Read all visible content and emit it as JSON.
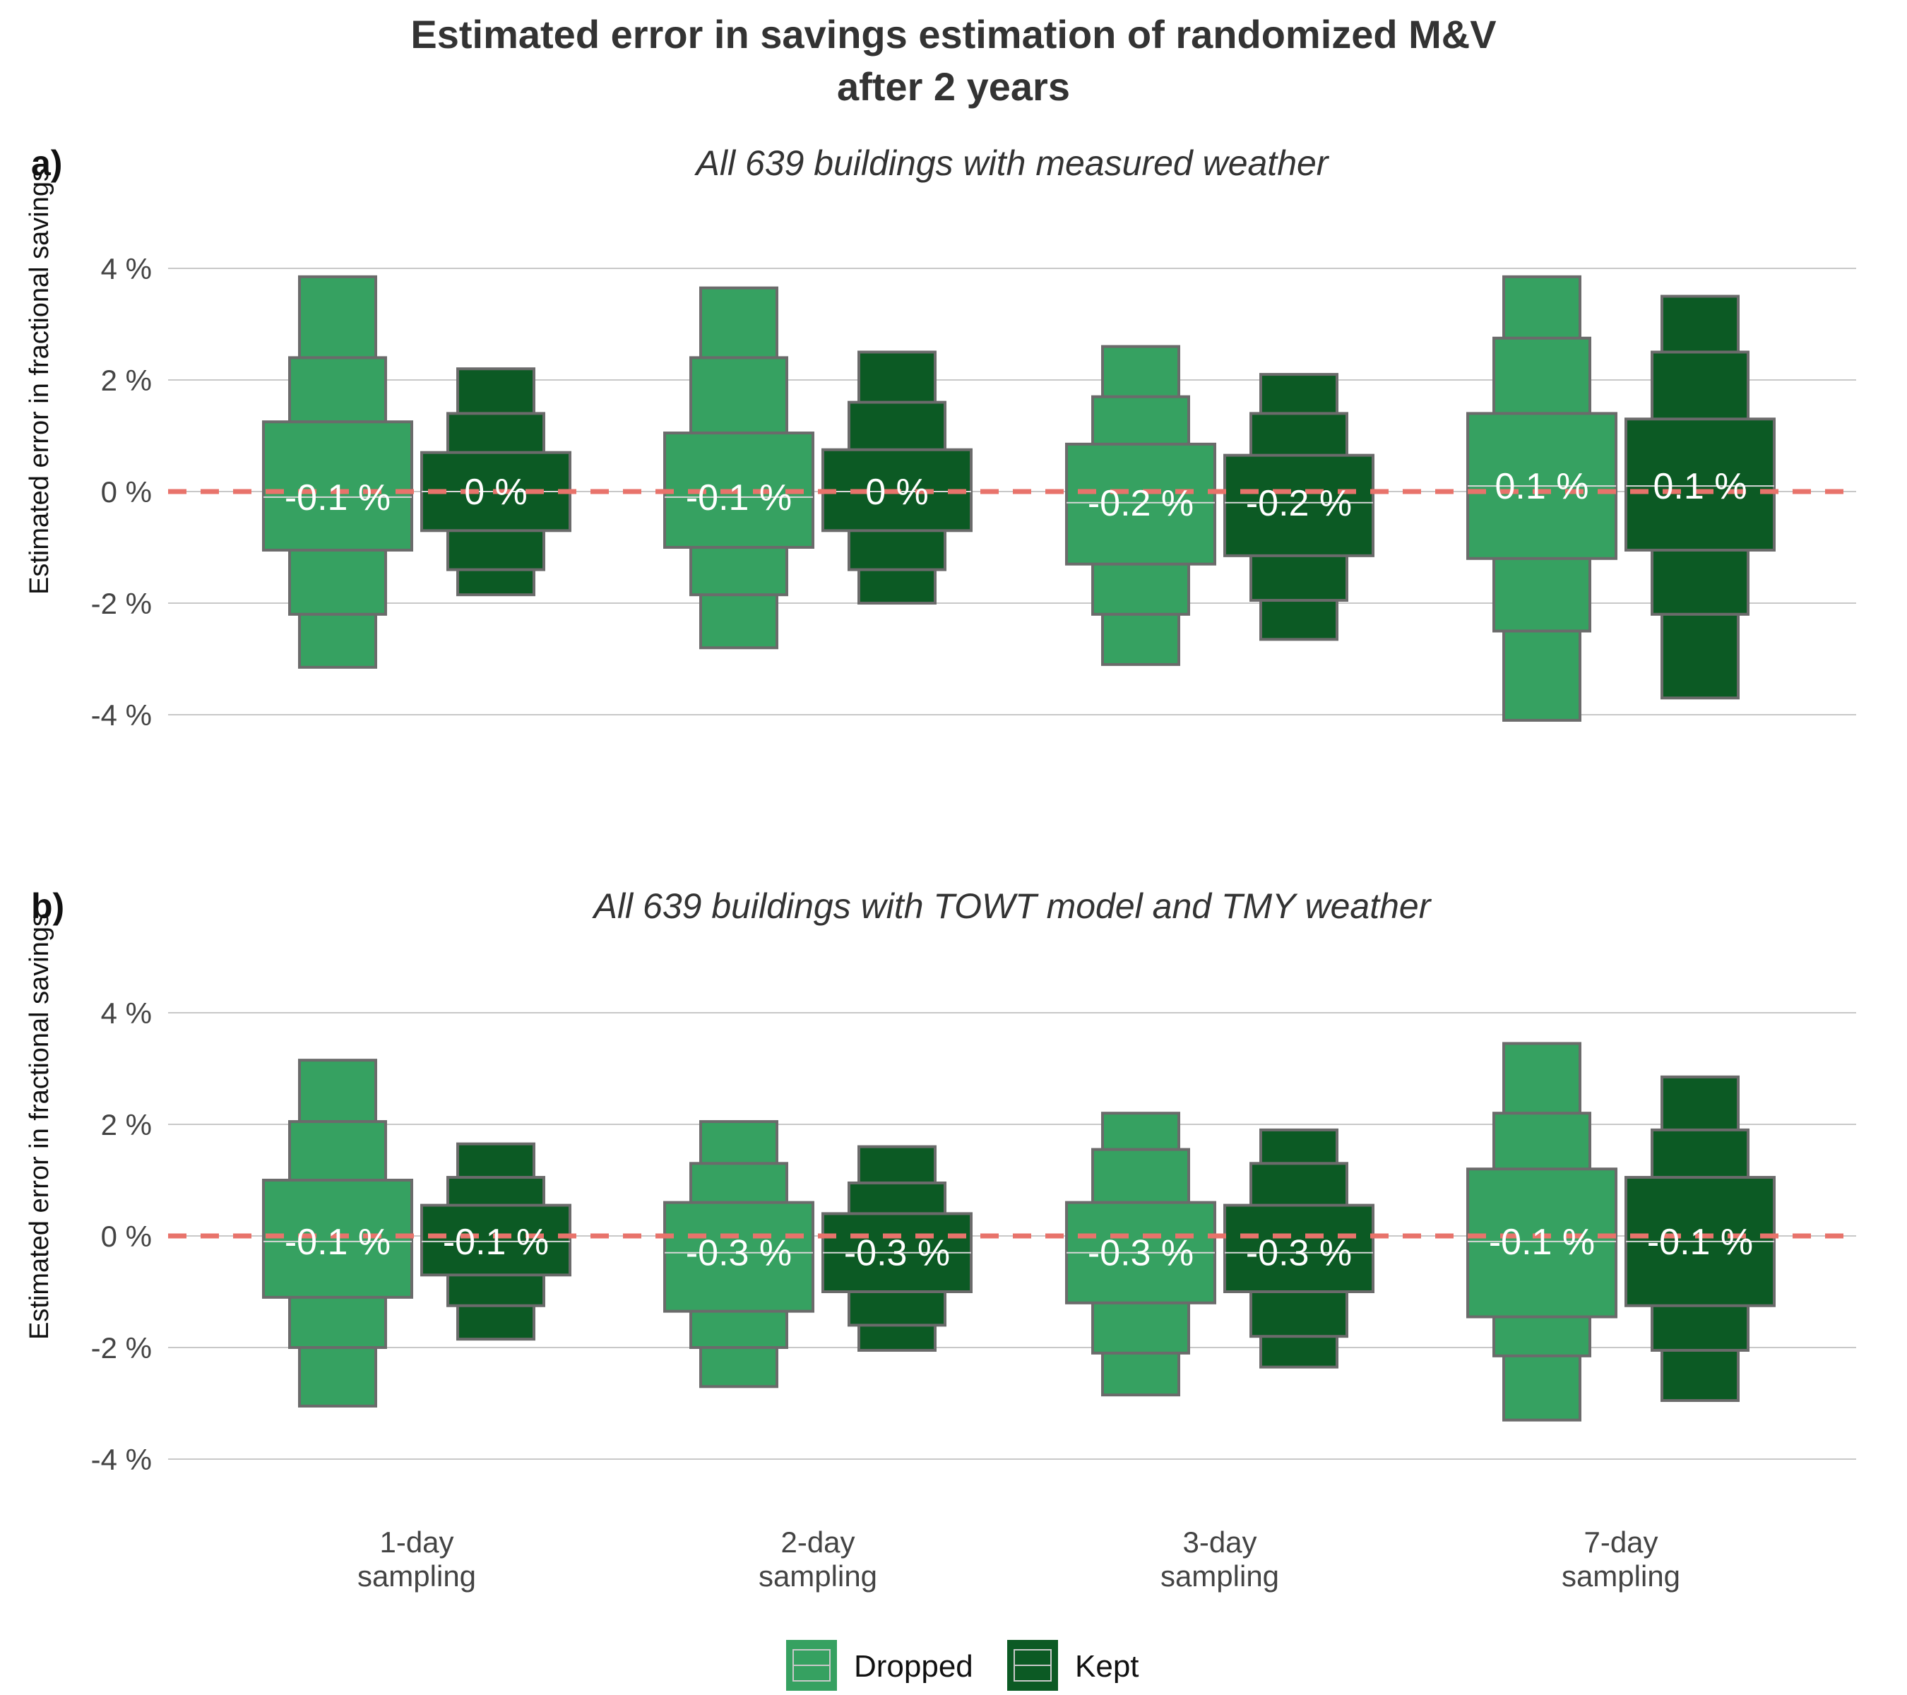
{
  "title": {
    "line1": "Estimated error in savings estimation of randomized M&V",
    "line2": "after 2 years"
  },
  "legend": {
    "items": [
      {
        "name": "Dropped",
        "color": "#36a161"
      },
      {
        "name": "Kept",
        "color": "#0c5a24"
      }
    ]
  },
  "colors": {
    "dropped": "#36a161",
    "kept": "#0c5a24",
    "box_edge": "#6b6b6b",
    "reference_line": "#e8736b",
    "grid": "#c8c8c8"
  },
  "chart_data": [
    {
      "type": "letter-value boxplot",
      "panel_tag": "a)",
      "subtitle": "All 639 buildings with measured weather",
      "ylabel": "Estimated error in fractional savings",
      "ylim": [
        -5,
        5
      ],
      "yticks": [
        4,
        2,
        0,
        -2,
        -4
      ],
      "ytick_labels": [
        "4 %",
        "2 %",
        "0 %",
        "-2 %",
        "-4 %"
      ],
      "reference_line": 0,
      "grid": true,
      "categories": [
        "1-day\nsampling",
        "2-day\nsampling",
        "3-day\nsampling",
        "7-day\nsampling"
      ],
      "series": [
        {
          "name": "Dropped",
          "boxes": [
            {
              "median": -0.1,
              "label": "-0.1 %",
              "levels": [
                [
                  -1.05,
                  1.25
                ],
                [
                  -2.2,
                  2.4
                ],
                [
                  -3.15,
                  3.85
                ]
              ]
            },
            {
              "median": -0.1,
              "label": "-0.1 %",
              "levels": [
                [
                  -1.0,
                  1.05
                ],
                [
                  -1.85,
                  2.4
                ],
                [
                  -2.8,
                  3.65
                ]
              ]
            },
            {
              "median": -0.2,
              "label": "-0.2 %",
              "levels": [
                [
                  -1.3,
                  0.85
                ],
                [
                  -2.2,
                  1.7
                ],
                [
                  -3.1,
                  2.6
                ]
              ]
            },
            {
              "median": 0.1,
              "label": "0.1 %",
              "levels": [
                [
                  -1.2,
                  1.4
                ],
                [
                  -2.5,
                  2.75
                ],
                [
                  -4.1,
                  3.85
                ]
              ]
            }
          ]
        },
        {
          "name": "Kept",
          "boxes": [
            {
              "median": 0.0,
              "label": "0 %",
              "levels": [
                [
                  -0.7,
                  0.7
                ],
                [
                  -1.4,
                  1.4
                ],
                [
                  -1.85,
                  2.2
                ]
              ]
            },
            {
              "median": 0.0,
              "label": "0 %",
              "levels": [
                [
                  -0.7,
                  0.75
                ],
                [
                  -1.4,
                  1.6
                ],
                [
                  -2.0,
                  2.5
                ]
              ]
            },
            {
              "median": -0.2,
              "label": "-0.2 %",
              "levels": [
                [
                  -1.15,
                  0.65
                ],
                [
                  -1.95,
                  1.4
                ],
                [
                  -2.65,
                  2.1
                ]
              ]
            },
            {
              "median": 0.1,
              "label": "0.1 %",
              "levels": [
                [
                  -1.05,
                  1.3
                ],
                [
                  -2.2,
                  2.5
                ],
                [
                  -3.7,
                  3.5
                ]
              ]
            }
          ]
        }
      ]
    },
    {
      "type": "letter-value boxplot",
      "panel_tag": "b)",
      "subtitle": "All 639 buildings with TOWT model and TMY weather",
      "ylabel": "Estimated error in fractional savings",
      "ylim": [
        -5,
        5
      ],
      "yticks": [
        4,
        2,
        0,
        -2,
        -4
      ],
      "ytick_labels": [
        "4 %",
        "2 %",
        "0 %",
        "-2 %",
        "-4 %"
      ],
      "reference_line": 0,
      "grid": true,
      "categories": [
        "1-day\nsampling",
        "2-day\nsampling",
        "3-day\nsampling",
        "7-day\nsampling"
      ],
      "series": [
        {
          "name": "Dropped",
          "boxes": [
            {
              "median": -0.1,
              "label": "-0.1 %",
              "levels": [
                [
                  -1.1,
                  1.0
                ],
                [
                  -2.0,
                  2.05
                ],
                [
                  -3.05,
                  3.15
                ]
              ]
            },
            {
              "median": -0.3,
              "label": "-0.3 %",
              "levels": [
                [
                  -1.35,
                  0.6
                ],
                [
                  -2.0,
                  1.3
                ],
                [
                  -2.7,
                  2.05
                ]
              ]
            },
            {
              "median": -0.3,
              "label": "-0.3 %",
              "levels": [
                [
                  -1.2,
                  0.6
                ],
                [
                  -2.1,
                  1.55
                ],
                [
                  -2.85,
                  2.2
                ]
              ]
            },
            {
              "median": -0.1,
              "label": "-0.1 %",
              "levels": [
                [
                  -1.45,
                  1.2
                ],
                [
                  -2.15,
                  2.2
                ],
                [
                  -3.3,
                  3.45
                ]
              ]
            }
          ]
        },
        {
          "name": "Kept",
          "boxes": [
            {
              "median": -0.1,
              "label": "-0.1 %",
              "levels": [
                [
                  -0.7,
                  0.55
                ],
                [
                  -1.25,
                  1.05
                ],
                [
                  -1.85,
                  1.65
                ]
              ]
            },
            {
              "median": -0.3,
              "label": "-0.3 %",
              "levels": [
                [
                  -1.0,
                  0.4
                ],
                [
                  -1.6,
                  0.95
                ],
                [
                  -2.05,
                  1.6
                ]
              ]
            },
            {
              "median": -0.3,
              "label": "-0.3 %",
              "levels": [
                [
                  -1.0,
                  0.55
                ],
                [
                  -1.8,
                  1.3
                ],
                [
                  -2.35,
                  1.9
                ]
              ]
            },
            {
              "median": -0.1,
              "label": "-0.1 %",
              "levels": [
                [
                  -1.25,
                  1.05
                ],
                [
                  -2.05,
                  1.9
                ],
                [
                  -2.95,
                  2.85
                ]
              ]
            }
          ]
        }
      ]
    }
  ]
}
